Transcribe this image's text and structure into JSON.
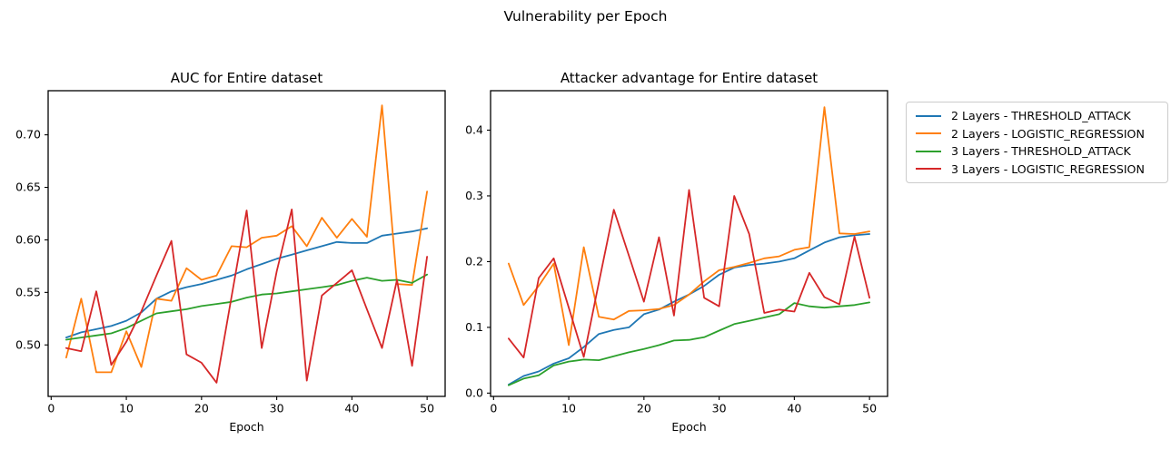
{
  "figure": {
    "suptitle": "Vulnerability per Epoch"
  },
  "legend": {
    "items": [
      {
        "label": "2 Layers - THRESHOLD_ATTACK",
        "color": "#1f77b4"
      },
      {
        "label": "2 Layers - LOGISTIC_REGRESSION",
        "color": "#ff7f0e"
      },
      {
        "label": "3 Layers - THRESHOLD_ATTACK",
        "color": "#2ca02c"
      },
      {
        "label": "3 Layers - LOGISTIC_REGRESSION",
        "color": "#d62728"
      }
    ]
  },
  "chart_data": [
    {
      "type": "line",
      "title": "AUC for Entire dataset",
      "xlabel": "Epoch",
      "ylabel": "",
      "grid": false,
      "legend_position": "outside-right",
      "xlim": [
        -0.4,
        52.4
      ],
      "ylim": [
        0.451,
        0.742
      ],
      "x_ticks": [
        0,
        10,
        20,
        30,
        40,
        50
      ],
      "x_tick_labels": [
        "0",
        "10",
        "20",
        "30",
        "40",
        "50"
      ],
      "y_ticks": [
        0.5,
        0.55,
        0.6,
        0.65,
        0.7
      ],
      "y_tick_labels": [
        "0.50",
        "0.55",
        "0.60",
        "0.65",
        "0.70"
      ],
      "x": [
        2,
        4,
        6,
        8,
        10,
        12,
        14,
        16,
        18,
        20,
        22,
        24,
        26,
        28,
        30,
        32,
        34,
        36,
        38,
        40,
        42,
        44,
        46,
        48,
        50
      ],
      "series": [
        {
          "name": "2 Layers - THRESHOLD_ATTACK",
          "color": "#1f77b4",
          "values": [
            0.507,
            0.512,
            0.515,
            0.518,
            0.523,
            0.531,
            0.544,
            0.551,
            0.555,
            0.558,
            0.562,
            0.566,
            0.572,
            0.577,
            0.582,
            0.586,
            0.59,
            0.594,
            0.598,
            0.597,
            0.597,
            0.604,
            0.606,
            0.608,
            0.611
          ]
        },
        {
          "name": "2 Layers - LOGISTIC_REGRESSION",
          "color": "#ff7f0e",
          "values": [
            0.488,
            0.544,
            0.474,
            0.474,
            0.513,
            0.479,
            0.544,
            0.542,
            0.573,
            0.562,
            0.566,
            0.594,
            0.593,
            0.602,
            0.604,
            0.613,
            0.594,
            0.621,
            0.602,
            0.62,
            0.603,
            0.728,
            0.558,
            0.557,
            0.646
          ]
        },
        {
          "name": "3 Layers - THRESHOLD_ATTACK",
          "color": "#2ca02c",
          "values": [
            0.505,
            0.507,
            0.509,
            0.511,
            0.516,
            0.523,
            0.53,
            0.532,
            0.534,
            0.537,
            0.539,
            0.541,
            0.545,
            0.548,
            0.549,
            0.551,
            0.553,
            0.555,
            0.557,
            0.561,
            0.564,
            0.561,
            0.562,
            0.559,
            0.567
          ]
        },
        {
          "name": "3 Layers - LOGISTIC_REGRESSION",
          "color": "#d62728",
          "values": [
            0.497,
            0.494,
            0.551,
            0.481,
            0.503,
            0.532,
            0.566,
            0.599,
            0.491,
            0.483,
            0.464,
            0.546,
            0.628,
            0.497,
            0.57,
            0.629,
            0.466,
            0.547,
            0.559,
            0.571,
            0.534,
            0.497,
            0.562,
            0.48,
            0.584
          ]
        }
      ]
    },
    {
      "type": "line",
      "title": "Attacker advantage for Entire dataset",
      "xlabel": "Epoch",
      "ylabel": "",
      "grid": false,
      "xlim": [
        -0.4,
        52.4
      ],
      "ylim": [
        -0.005,
        0.46
      ],
      "x_ticks": [
        0,
        10,
        20,
        30,
        40,
        50
      ],
      "x_tick_labels": [
        "0",
        "10",
        "20",
        "30",
        "40",
        "50"
      ],
      "y_ticks": [
        0.0,
        0.1,
        0.2,
        0.3,
        0.4
      ],
      "y_tick_labels": [
        "0.0",
        "0.1",
        "0.2",
        "0.3",
        "0.4"
      ],
      "x": [
        2,
        4,
        6,
        8,
        10,
        12,
        14,
        16,
        18,
        20,
        22,
        24,
        26,
        28,
        30,
        32,
        34,
        36,
        38,
        40,
        42,
        44,
        46,
        48,
        50
      ],
      "series": [
        {
          "name": "2 Layers - THRESHOLD_ATTACK",
          "color": "#1f77b4",
          "values": [
            0.013,
            0.026,
            0.033,
            0.045,
            0.053,
            0.07,
            0.09,
            0.096,
            0.1,
            0.12,
            0.127,
            0.139,
            0.15,
            0.163,
            0.18,
            0.191,
            0.195,
            0.197,
            0.2,
            0.205,
            0.217,
            0.229,
            0.237,
            0.24,
            0.242
          ]
        },
        {
          "name": "2 Layers - LOGISTIC_REGRESSION",
          "color": "#ff7f0e",
          "values": [
            0.197,
            0.134,
            0.163,
            0.197,
            0.073,
            0.222,
            0.116,
            0.112,
            0.125,
            0.126,
            0.128,
            0.134,
            0.15,
            0.17,
            0.187,
            0.192,
            0.198,
            0.205,
            0.208,
            0.218,
            0.222,
            0.435,
            0.243,
            0.242,
            0.246
          ]
        },
        {
          "name": "3 Layers - THRESHOLD_ATTACK",
          "color": "#2ca02c",
          "values": [
            0.012,
            0.022,
            0.027,
            0.042,
            0.048,
            0.051,
            0.05,
            0.056,
            0.062,
            0.067,
            0.073,
            0.08,
            0.081,
            0.085,
            0.095,
            0.105,
            0.11,
            0.115,
            0.12,
            0.137,
            0.132,
            0.13,
            0.132,
            0.134,
            0.138
          ]
        },
        {
          "name": "3 Layers - LOGISTIC_REGRESSION",
          "color": "#d62728",
          "values": [
            0.083,
            0.054,
            0.175,
            0.205,
            0.13,
            0.055,
            0.168,
            0.279,
            0.209,
            0.139,
            0.237,
            0.118,
            0.309,
            0.145,
            0.132,
            0.3,
            0.242,
            0.122,
            0.127,
            0.124,
            0.183,
            0.146,
            0.135,
            0.238,
            0.145
          ]
        }
      ]
    }
  ]
}
